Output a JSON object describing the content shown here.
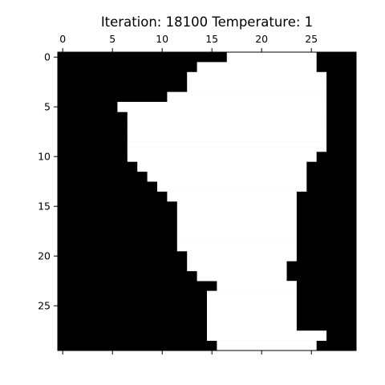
{
  "chart_data": {
    "type": "heatmap",
    "title": "Iteration: 18100 Temperature: 1",
    "grid": false,
    "colormap": [
      "#000000",
      "#ffffff"
    ],
    "x_ticks": [
      0,
      5,
      10,
      15,
      20,
      25
    ],
    "y_ticks": [
      0,
      5,
      10,
      15,
      20,
      25
    ],
    "x_tick_labels": [
      "0",
      "5",
      "10",
      "15",
      "20",
      "25"
    ],
    "y_tick_labels": [
      "0",
      "5",
      "10",
      "15",
      "20",
      "25"
    ],
    "cols": 30,
    "rows": 30,
    "white_runs": [
      [
        [
          17,
          25
        ]
      ],
      [
        [
          14,
          25
        ]
      ],
      [
        [
          13,
          26
        ]
      ],
      [
        [
          13,
          26
        ]
      ],
      [
        [
          11,
          26
        ]
      ],
      [
        [
          6,
          9
        ],
        [
          10,
          26
        ]
      ],
      [
        [
          7,
          26
        ]
      ],
      [
        [
          7,
          26
        ]
      ],
      [
        [
          7,
          26
        ]
      ],
      [
        [
          7,
          26
        ]
      ],
      [
        [
          7,
          25
        ]
      ],
      [
        [
          8,
          24
        ]
      ],
      [
        [
          9,
          24
        ]
      ],
      [
        [
          10,
          24
        ]
      ],
      [
        [
          11,
          23
        ]
      ],
      [
        [
          12,
          23
        ]
      ],
      [
        [
          12,
          23
        ]
      ],
      [
        [
          12,
          23
        ]
      ],
      [
        [
          12,
          23
        ]
      ],
      [
        [
          12,
          23
        ]
      ],
      [
        [
          13,
          23
        ]
      ],
      [
        [
          13,
          22
        ]
      ],
      [
        [
          14,
          22
        ]
      ],
      [
        [
          16,
          23
        ]
      ],
      [
        [
          15,
          23
        ]
      ],
      [
        [
          15,
          23
        ]
      ],
      [
        [
          15,
          23
        ]
      ],
      [
        [
          15,
          23
        ]
      ],
      [
        [
          15,
          26
        ]
      ],
      [
        [
          16,
          25
        ]
      ]
    ]
  }
}
